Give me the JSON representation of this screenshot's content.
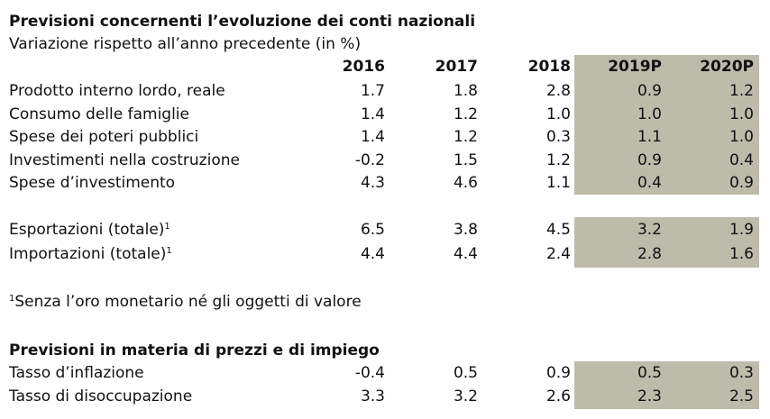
{
  "colors": {
    "shade": "#bdbbaa",
    "text": "#111111"
  },
  "section1": {
    "title": "Previsioni concernenti l’evoluzione dei conti nazionali",
    "subtitle": "Variazione rispetto all’anno precedente (in %)",
    "headers": [
      "2016",
      "2017",
      "2018",
      "2019P",
      "2020P"
    ],
    "rows": [
      {
        "label": "Prodotto interno lordo, reale",
        "values": [
          "1.7",
          "1.8",
          "2.8",
          "0.9",
          "1.2"
        ]
      },
      {
        "label": "Consumo delle famiglie",
        "values": [
          "1.4",
          "1.2",
          "1.0",
          "1.0",
          "1.0"
        ]
      },
      {
        "label": "Spese dei poteri pubblici",
        "values": [
          "1.4",
          "1.2",
          "0.3",
          "1.1",
          "1.0"
        ]
      },
      {
        "label": "Investimenti nella costruzione",
        "values": [
          "-0.2",
          "1.5",
          "1.2",
          "0.9",
          "0.4"
        ]
      },
      {
        "label": "Spese d’investimento",
        "values": [
          "4.3",
          "4.6",
          "1.1",
          "0.4",
          "0.9"
        ]
      }
    ],
    "trade_rows": [
      {
        "label": "Esportazioni (totale)",
        "sup": "1",
        "values": [
          "6.5",
          "3.8",
          "4.5",
          "3.2",
          "1.9"
        ]
      },
      {
        "label": "Importazioni (totale)",
        "sup": "1",
        "values": [
          "4.4",
          "4.4",
          "2.4",
          "2.8",
          "1.6"
        ]
      }
    ]
  },
  "footnote": {
    "sup": "1",
    "text": "Senza l’oro monetario né gli oggetti di valore"
  },
  "section2": {
    "title": "Previsioni in materia di prezzi e di impiego",
    "rows": [
      {
        "label": "Tasso d’inflazione",
        "values": [
          "-0.4",
          "0.5",
          "0.9",
          "0.5",
          "0.3"
        ]
      },
      {
        "label": "Tasso di disoccupazione",
        "values": [
          "3.3",
          "3.2",
          "2.6",
          "2.3",
          "2.5"
        ]
      }
    ]
  }
}
